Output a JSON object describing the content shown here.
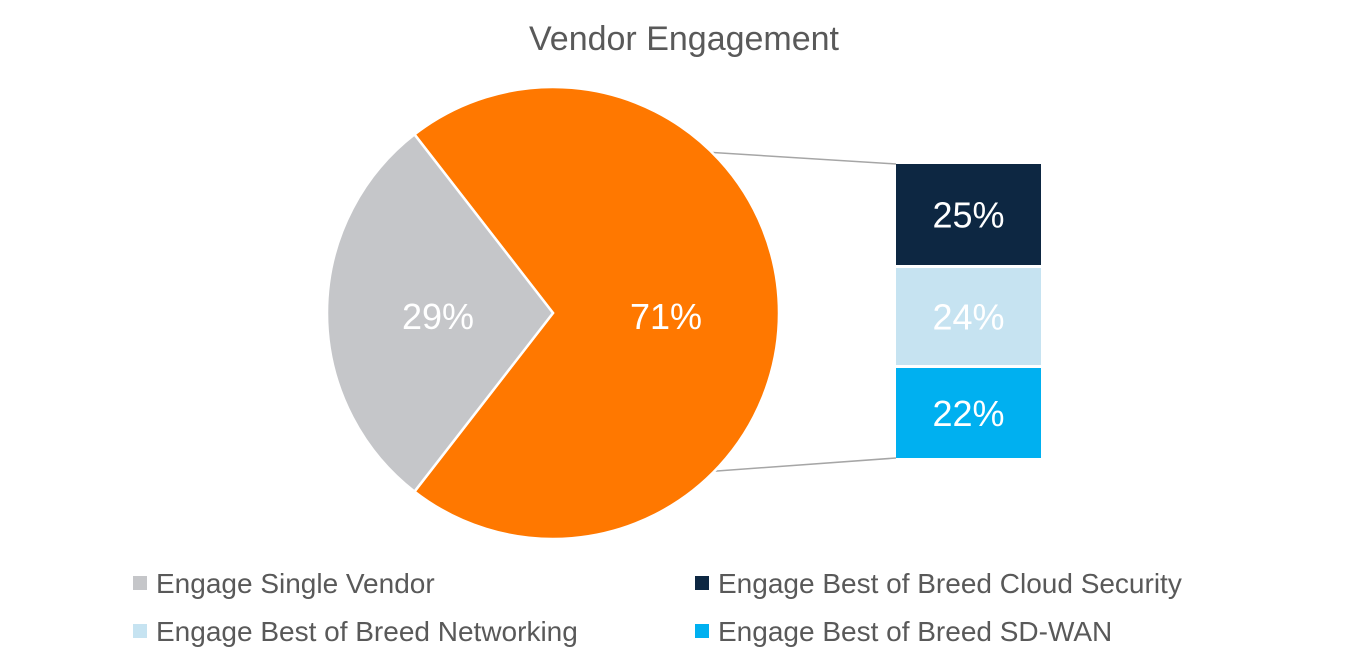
{
  "chart_data": {
    "type": "pie",
    "title": "Vendor Engagement",
    "slices": [
      {
        "label": "Engage Single Vendor",
        "value": 29,
        "display": "29%",
        "color": "#C5C6C9"
      },
      {
        "label": "Engage Best of Breed",
        "value": 71,
        "display": "71%",
        "color": "#FF7800"
      }
    ],
    "breakout": {
      "type": "bar",
      "of_slice": 1,
      "stacked": true,
      "segments": [
        {
          "label": "Engage Best of Breed Cloud Security",
          "value": 25,
          "display": "25%",
          "color": "#0D2742"
        },
        {
          "label": "Engage Best of Breed Networking",
          "value": 24,
          "display": "24%",
          "color": "#C6E3F1"
        },
        {
          "label": "Engage Best of Breed SD-WAN",
          "value": 22,
          "display": "22%",
          "color": "#00B0F0"
        }
      ]
    },
    "legend": {
      "placement": "bottom",
      "entries": [
        {
          "label": "Engage Single Vendor",
          "color": "#C5C6C9"
        },
        {
          "label": "Engage Best of Breed Cloud Security",
          "color": "#0D2742"
        },
        {
          "label": "Engage Best of Breed Networking",
          "color": "#C6E3F1"
        },
        {
          "label": "Engage Best of Breed SD-WAN",
          "color": "#00B0F0"
        }
      ]
    },
    "connector_color": "#A6A6A6"
  }
}
